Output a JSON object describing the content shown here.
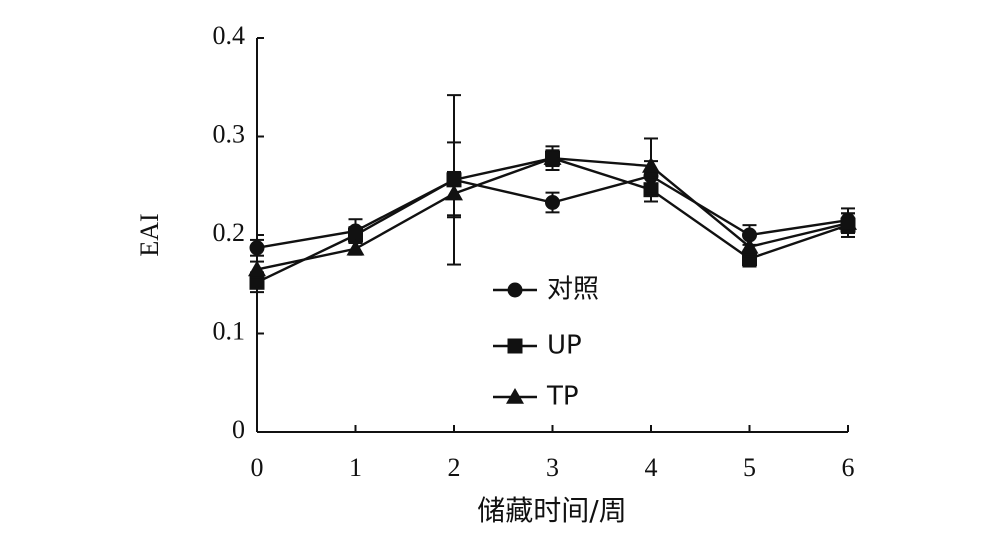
{
  "chart_data": {
    "type": "line",
    "xlabel": "储藏时间/周",
    "ylabel": "EAI",
    "x": [
      0,
      1,
      2,
      3,
      4,
      5,
      6
    ],
    "xticks": [
      "0",
      "1",
      "2",
      "3",
      "4",
      "5",
      "6"
    ],
    "ylim": [
      0,
      0.4
    ],
    "yticks": [
      "0",
      "0.1",
      "0.2",
      "0.3",
      "0.4"
    ],
    "yticks_values": [
      0,
      0.1,
      0.2,
      0.3,
      0.4
    ],
    "grid": false,
    "legend_position": "center",
    "series": [
      {
        "name": "对照",
        "marker": "circle",
        "values": [
          0.187,
          0.204,
          0.256,
          0.233,
          0.26,
          0.2,
          0.215
        ],
        "errors": [
          0.008,
          0.012,
          0.038,
          0.01,
          0.015,
          0.01,
          0.012
        ]
      },
      {
        "name": "UP",
        "marker": "square",
        "values": [
          0.152,
          0.2,
          0.256,
          0.278,
          0.246,
          0.176,
          0.21
        ],
        "errors": [
          0.01,
          0.008,
          0.086,
          0.012,
          0.012,
          0.008,
          0.012
        ]
      },
      {
        "name": "TP",
        "marker": "triangle",
        "values": [
          0.165,
          0.186,
          0.242,
          0.278,
          0.27,
          0.188,
          0.212
        ],
        "errors": [
          0.008,
          0.006,
          0.022,
          0.008,
          0.028,
          0.01,
          0.01
        ]
      }
    ]
  }
}
